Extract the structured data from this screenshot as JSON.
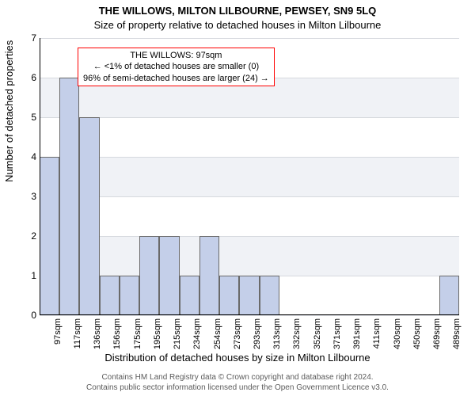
{
  "chart": {
    "type": "histogram",
    "title_main": "THE WILLOWS, MILTON LILBOURNE, PEWSEY, SN9 5LQ",
    "title_sub": "Size of property relative to detached houses in Milton Lilbourne",
    "ylabel": "Number of detached properties",
    "xlabel": "Distribution of detached houses by size in Milton Lilbourne",
    "ylim": [
      0,
      7
    ],
    "ytick_step": 1,
    "yticks": [
      "0",
      "1",
      "2",
      "3",
      "4",
      "5",
      "6",
      "7"
    ],
    "categories": [
      "97sqm",
      "117sqm",
      "136sqm",
      "156sqm",
      "175sqm",
      "195sqm",
      "215sqm",
      "234sqm",
      "254sqm",
      "273sqm",
      "293sqm",
      "313sqm",
      "332sqm",
      "352sqm",
      "371sqm",
      "391sqm",
      "411sqm",
      "430sqm",
      "450sqm",
      "469sqm",
      "489sqm"
    ],
    "values": [
      4,
      6,
      5,
      1,
      1,
      2,
      2,
      1,
      2,
      1,
      1,
      1,
      0,
      0,
      0,
      0,
      0,
      0,
      0,
      0,
      1
    ],
    "bar_fill": "#c4cfe9",
    "bar_stroke": "#6a6a6a",
    "bar_width_ratio": 1.0,
    "background_stripes": [
      "#ffffff",
      "#f0f2f6"
    ],
    "grid_color": "#d6d9de",
    "axis_color": "#000000",
    "annotation": {
      "lines": [
        "THE WILLOWS: 97sqm",
        "← <1% of detached houses are smaller (0)",
        "96% of semi-detached houses are larger (24) →"
      ],
      "border_color": "#ff0000",
      "bg_color": "#ffffff",
      "fontsize": 11
    },
    "title_fontsize": 13,
    "label_fontsize": 13,
    "tick_fontsize": 11
  },
  "footer": {
    "line1": "Contains HM Land Registry data © Crown copyright and database right 2024.",
    "line2": "Contains public sector information licensed under the Open Government Licence v3.0."
  }
}
